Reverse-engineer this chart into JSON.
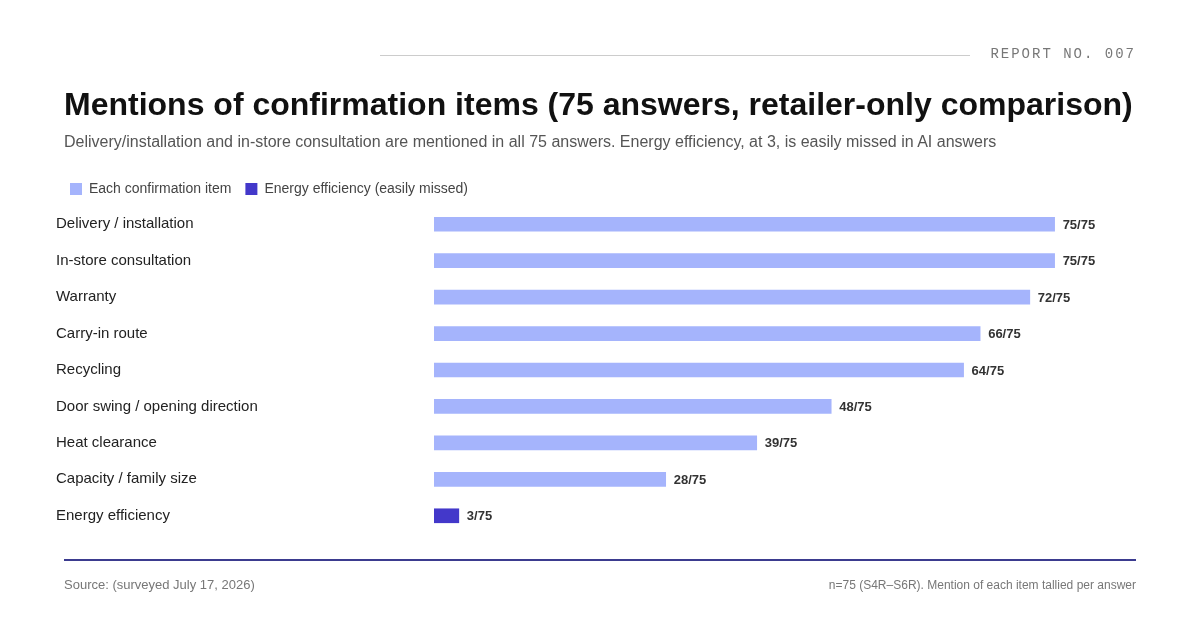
{
  "chart_data": {
    "type": "bar",
    "orientation": "horizontal",
    "stacked": true,
    "title": "Mentions of confirmation items (75 answers, retailer-only comparison)",
    "subtitle": "Delivery/installation and in-store consultation are mentioned in all 75 answers. Energy efficiency, at 3, is easily missed in AI answers",
    "categories": [
      "Delivery / installation",
      "In-store consultation",
      "Warranty",
      "Carry-in route",
      "Recycling",
      "Door swing / opening direction",
      "Heat clearance",
      "Capacity / family size",
      "Energy efficiency"
    ],
    "series": [
      {
        "name": "Each confirmation item",
        "color": "#a5b4fc",
        "values": [
          75,
          75,
          72,
          66,
          64,
          48,
          39,
          28,
          null
        ],
        "value_labels": [
          "75/75",
          "75/75",
          "72/75",
          "66/75",
          "64/75",
          "48/75",
          "39/75",
          "28/75",
          null
        ]
      },
      {
        "name": "Energy efficiency (easily missed)",
        "color": "#4338ca",
        "values": [
          null,
          null,
          null,
          null,
          null,
          null,
          null,
          null,
          3
        ],
        "value_labels": [
          null,
          null,
          null,
          null,
          null,
          null,
          null,
          null,
          "3/75"
        ]
      }
    ],
    "legend": "top left",
    "grid": false,
    "annotations": [
      "REPORT NO. 007",
      "Source: (surveyed July 17, 2026)",
      "n=75 (S4R–S6R). Mention of each item tallied per answer"
    ]
  }
}
